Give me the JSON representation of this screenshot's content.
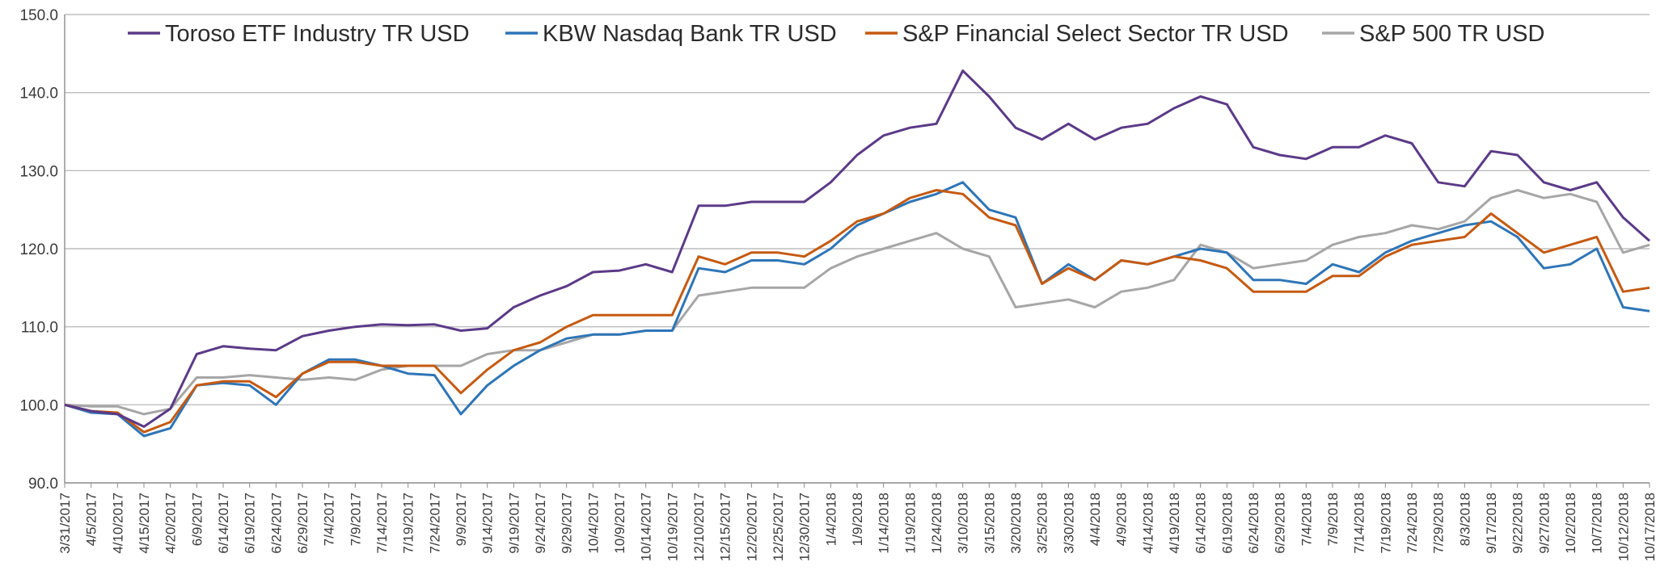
{
  "chart_data": {
    "type": "line",
    "title": "",
    "xlabel": "",
    "ylabel": "",
    "ylim": [
      90,
      150
    ],
    "y_ticks": [
      "90.0",
      "100.0",
      "110.0",
      "120.0",
      "130.0",
      "140.0",
      "150.0"
    ],
    "grid": "horizontal",
    "legend_position": "top",
    "x_labels": [
      "3/31/2017",
      "4/5/2017",
      "4/10/2017",
      "4/15/2017",
      "4/20/2017",
      "6/9/2017",
      "6/14/2017",
      "6/19/2017",
      "6/24/2017",
      "6/29/2017",
      "7/4/2017",
      "7/9/2017",
      "7/14/2017",
      "7/19/2017",
      "7/24/2017",
      "9/9/2017",
      "9/14/2017",
      "9/19/2017",
      "9/24/2017",
      "9/29/2017",
      "10/4/2017",
      "10/9/2017",
      "10/14/2017",
      "10/19/2017",
      "12/10/2017",
      "12/15/2017",
      "12/20/2017",
      "12/25/2017",
      "12/30/2017",
      "1/4/2018",
      "1/9/2018",
      "1/14/2018",
      "1/19/2018",
      "1/24/2018",
      "3/10/2018",
      "3/15/2018",
      "3/20/2018",
      "3/25/2018",
      "3/30/2018",
      "4/4/2018",
      "4/9/2018",
      "4/14/2018",
      "4/19/2018",
      "6/14/2018",
      "6/19/2018",
      "6/24/2018",
      "6/29/2018",
      "7/4/2018",
      "7/9/2018",
      "7/14/2018",
      "7/19/2018",
      "7/24/2018",
      "7/29/2018",
      "8/3/2018",
      "9/17/2018",
      "9/22/2018",
      "9/27/2018",
      "10/2/2018",
      "10/7/2018",
      "10/12/2018",
      "10/17/2018"
    ],
    "series": [
      {
        "name": "Toroso ETF Industry TR USD",
        "color": "#5b3a87",
        "values": [
          100.0,
          99.2,
          98.8,
          97.2,
          99.5,
          106.5,
          107.5,
          107.2,
          107.0,
          108.8,
          109.5,
          110.0,
          110.3,
          110.2,
          110.3,
          109.5,
          109.8,
          112.5,
          114.0,
          115.2,
          117.0,
          117.2,
          118.0,
          117.0,
          125.5,
          125.5,
          126.0,
          126.0,
          126.0,
          128.5,
          132.0,
          134.5,
          135.5,
          136.0,
          142.8,
          139.5,
          135.5,
          134.0,
          136.0,
          134.0,
          135.5,
          136.0,
          138.0,
          139.5,
          138.5,
          133.0,
          132.0,
          131.5,
          133.0,
          133.0,
          134.5,
          133.5,
          128.5,
          128.0,
          132.5,
          132.0,
          128.5,
          127.5,
          128.5,
          124.0,
          121.0
        ]
      },
      {
        "name": "KBW Nasdaq Bank TR USD",
        "color": "#2e75b6",
        "values": [
          100.0,
          99.0,
          98.8,
          96.0,
          97.0,
          102.5,
          102.8,
          102.5,
          100.0,
          104.0,
          105.8,
          105.8,
          105.0,
          104.0,
          103.8,
          98.8,
          102.5,
          105.0,
          107.0,
          108.5,
          109.0,
          109.0,
          109.5,
          109.5,
          117.5,
          117.0,
          118.5,
          118.5,
          118.0,
          120.0,
          123.0,
          124.5,
          126.0,
          127.0,
          128.5,
          125.0,
          124.0,
          115.5,
          118.0,
          116.0,
          118.5,
          118.0,
          119.0,
          120.0,
          119.5,
          116.0,
          116.0,
          115.5,
          118.0,
          117.0,
          119.5,
          121.0,
          122.0,
          123.0,
          123.5,
          121.5,
          117.5,
          118.0,
          120.0,
          112.5,
          112.0
        ]
      },
      {
        "name": "S&P Financial Select Sector TR USD",
        "color": "#c55a11",
        "values": [
          100.0,
          99.2,
          99.0,
          96.5,
          97.8,
          102.5,
          103.0,
          103.0,
          101.0,
          104.0,
          105.5,
          105.5,
          105.0,
          105.0,
          105.0,
          101.5,
          104.5,
          107.0,
          108.0,
          110.0,
          111.5,
          111.5,
          111.5,
          111.5,
          119.0,
          118.0,
          119.5,
          119.5,
          119.0,
          121.0,
          123.5,
          124.5,
          126.5,
          127.5,
          127.0,
          124.0,
          123.0,
          115.5,
          117.5,
          116.0,
          118.5,
          118.0,
          119.0,
          118.5,
          117.5,
          114.5,
          114.5,
          114.5,
          116.5,
          116.5,
          119.0,
          120.5,
          121.0,
          121.5,
          124.5,
          122.0,
          119.5,
          120.5,
          121.5,
          114.5,
          115.0
        ]
      },
      {
        "name": "S&P 500 TR USD",
        "color": "#a6a6a6",
        "values": [
          100.0,
          99.8,
          99.8,
          98.8,
          99.5,
          103.5,
          103.5,
          103.8,
          103.5,
          103.2,
          103.5,
          103.2,
          104.5,
          105.0,
          105.0,
          105.0,
          106.5,
          107.0,
          107.0,
          108.0,
          109.0,
          109.0,
          109.5,
          109.5,
          114.0,
          114.5,
          115.0,
          115.0,
          115.0,
          117.5,
          119.0,
          120.0,
          121.0,
          122.0,
          120.0,
          119.0,
          112.5,
          113.0,
          113.5,
          112.5,
          114.5,
          115.0,
          116.0,
          120.5,
          119.5,
          117.5,
          118.0,
          118.5,
          120.5,
          121.5,
          122.0,
          123.0,
          122.5,
          123.5,
          126.5,
          127.5,
          126.5,
          127.0,
          126.0,
          119.5,
          120.5
        ]
      }
    ]
  }
}
